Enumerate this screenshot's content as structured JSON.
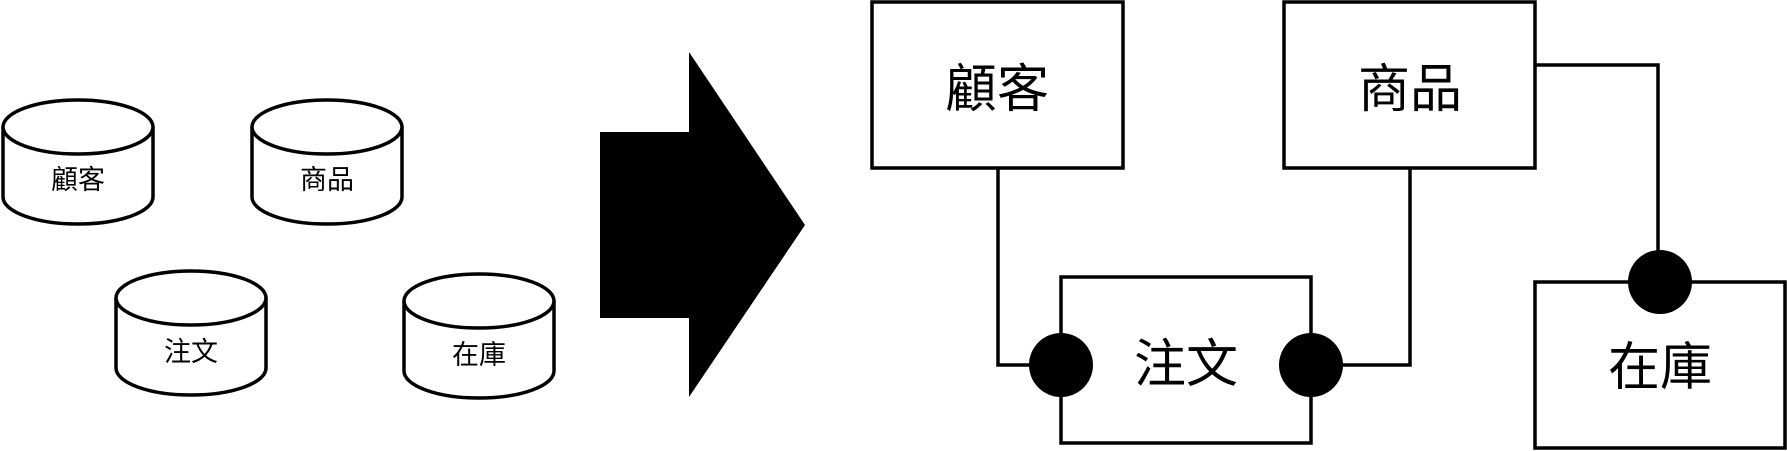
{
  "databases": [
    {
      "id": "customer",
      "label": "顧客"
    },
    {
      "id": "product",
      "label": "商品"
    },
    {
      "id": "order",
      "label": "注文"
    },
    {
      "id": "inventory",
      "label": "在庫"
    }
  ],
  "entities": [
    {
      "id": "customer",
      "label": "顧客"
    },
    {
      "id": "product",
      "label": "商品"
    },
    {
      "id": "order",
      "label": "注文"
    },
    {
      "id": "inventory",
      "label": "在庫"
    }
  ],
  "relationships": [
    {
      "from": "customer",
      "to": "order",
      "cardinality": "one-to-many"
    },
    {
      "from": "product",
      "to": "order",
      "cardinality": "one-to-many"
    },
    {
      "from": "product",
      "to": "inventory",
      "cardinality": "one-to-many"
    }
  ],
  "colors": {
    "stroke": "#000000",
    "fill": "#ffffff",
    "arrow": "#000000",
    "many_marker": "#000000"
  }
}
